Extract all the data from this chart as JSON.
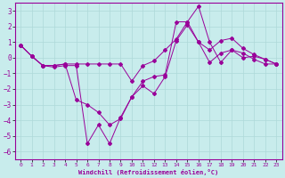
{
  "xlabel": "Windchill (Refroidissement éolien,°C)",
  "background_color": "#c8ecec",
  "grid_color": "#aed8d8",
  "line_color": "#990099",
  "xlim": [
    -0.5,
    23.5
  ],
  "ylim": [
    -6.5,
    3.5
  ],
  "yticks": [
    -6,
    -5,
    -4,
    -3,
    -2,
    -1,
    0,
    1,
    2,
    3
  ],
  "xticks": [
    0,
    1,
    2,
    3,
    4,
    5,
    6,
    7,
    8,
    9,
    10,
    11,
    12,
    13,
    14,
    15,
    16,
    17,
    18,
    19,
    20,
    21,
    22,
    23
  ],
  "line1_x": [
    0,
    1,
    2,
    3,
    4,
    5,
    6,
    7,
    8,
    9,
    10,
    11,
    12,
    13,
    14,
    15,
    16,
    17,
    18,
    19,
    20,
    21,
    22,
    23
  ],
  "line1_y": [
    0.8,
    0.1,
    -0.5,
    -0.6,
    -0.5,
    -0.5,
    -5.5,
    -4.3,
    -5.5,
    -3.8,
    -2.5,
    -1.5,
    -1.2,
    -1.1,
    2.3,
    2.3,
    3.3,
    1.0,
    -0.3,
    0.5,
    0.0,
    0.1,
    -0.1,
    -0.4
  ],
  "line2_x": [
    0,
    1,
    2,
    3,
    4,
    5,
    6,
    7,
    8,
    9,
    10,
    11,
    12,
    13,
    14,
    15,
    16,
    17,
    18,
    19,
    20,
    21,
    22,
    23
  ],
  "line2_y": [
    0.8,
    0.1,
    -0.5,
    -0.5,
    -0.4,
    -0.4,
    -0.4,
    -0.4,
    -0.4,
    -0.4,
    -1.5,
    -0.5,
    -0.2,
    0.5,
    1.2,
    2.3,
    1.0,
    0.5,
    1.1,
    1.25,
    0.6,
    0.2,
    -0.1,
    -0.4
  ],
  "line3_x": [
    0,
    1,
    2,
    3,
    4,
    5,
    6,
    7,
    8,
    9,
    10,
    11,
    12,
    13,
    14,
    15,
    16,
    17,
    18,
    19,
    20,
    21,
    22,
    23
  ],
  "line3_y": [
    0.8,
    0.1,
    -0.5,
    -0.5,
    -0.4,
    -2.7,
    -3.0,
    -3.5,
    -4.3,
    -3.9,
    -2.5,
    -1.8,
    -2.3,
    -1.2,
    1.1,
    2.1,
    1.0,
    -0.3,
    0.3,
    0.5,
    0.3,
    -0.1,
    -0.4,
    -0.4
  ]
}
